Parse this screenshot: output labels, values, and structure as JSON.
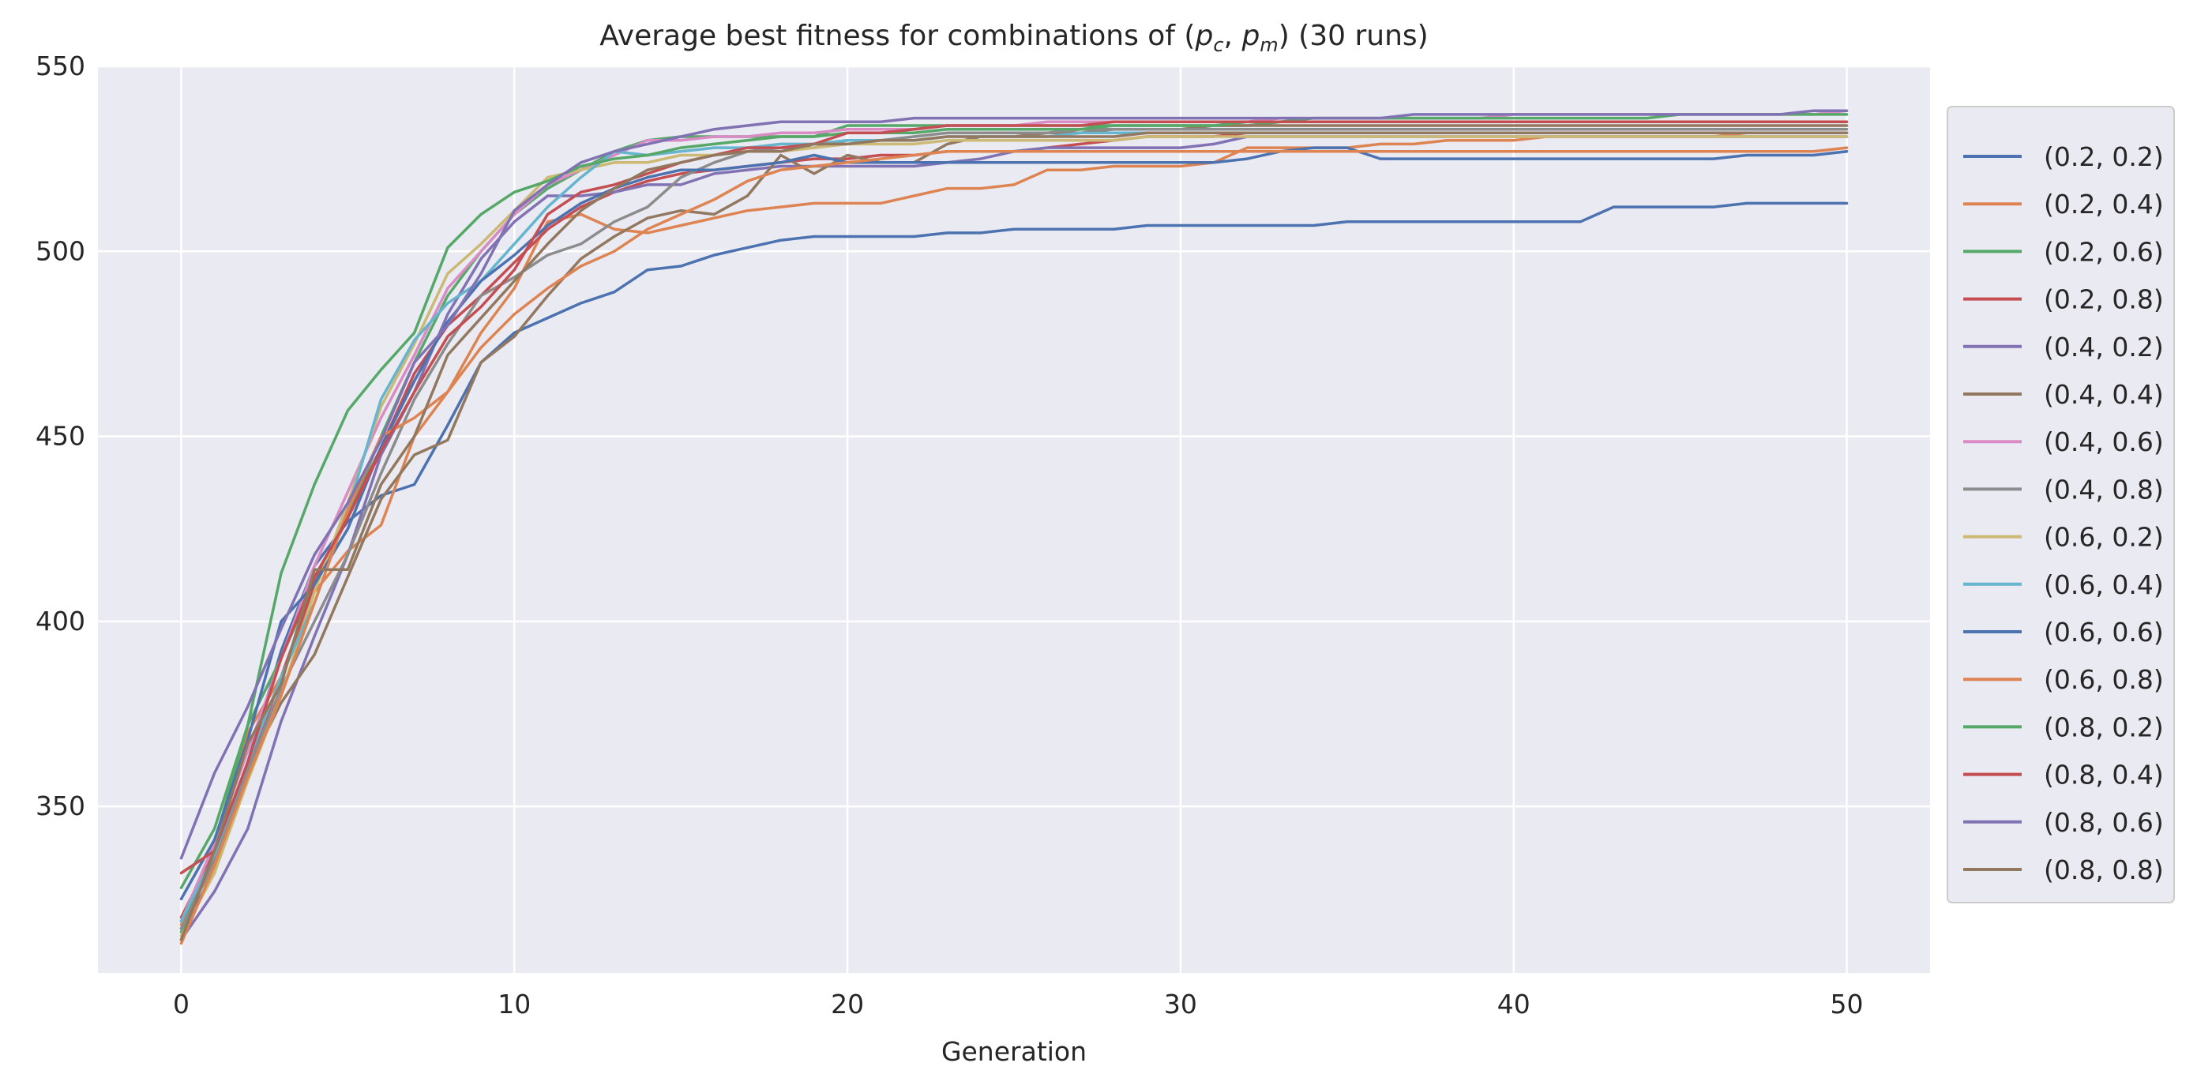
{
  "chart_data": {
    "type": "line",
    "title": "Average best fitness for combinations of (p_c, p_m) (30 runs)",
    "title_parts": {
      "pre": "Average best fitness for combinations of (",
      "pc_base": "p",
      "pc_sub": "c",
      "sep": ", ",
      "pm_base": "p",
      "pm_sub": "m",
      "post": ") (30 runs)"
    },
    "xlabel": "Generation",
    "ylabel": "",
    "xlim": [
      -2.5,
      52.5
    ],
    "ylim": [
      305,
      550
    ],
    "xticks": [
      0,
      10,
      20,
      30,
      40,
      50
    ],
    "yticks": [
      350,
      400,
      450,
      500,
      550
    ],
    "grid": true,
    "legend_position": "outside right",
    "x": [
      0,
      1,
      2,
      3,
      4,
      5,
      6,
      7,
      8,
      9,
      10,
      11,
      12,
      13,
      14,
      15,
      16,
      17,
      18,
      19,
      20,
      21,
      22,
      23,
      24,
      25,
      26,
      27,
      28,
      29,
      30,
      31,
      32,
      33,
      34,
      35,
      36,
      37,
      38,
      39,
      40,
      41,
      42,
      43,
      44,
      45,
      46,
      47,
      48,
      49,
      50
    ],
    "series": [
      {
        "name": "(0.2, 0.2)",
        "color": "#4c72b0",
        "values": [
          317,
          332,
          362,
          392,
          415,
          427,
          434,
          437,
          453,
          470,
          478,
          482,
          486,
          489,
          495,
          496,
          499,
          501,
          503,
          504,
          504,
          504,
          504,
          505,
          505,
          506,
          506,
          506,
          506,
          507,
          507,
          507,
          507,
          507,
          507,
          508,
          508,
          508,
          508,
          508,
          508,
          508,
          508,
          512,
          512,
          512,
          512,
          513,
          513,
          513,
          513
        ]
      },
      {
        "name": "(0.2, 0.4)",
        "color": "#dd8452",
        "values": [
          318,
          340,
          370,
          385,
          408,
          419,
          426,
          450,
          462,
          478,
          490,
          508,
          510,
          506,
          505,
          507,
          509,
          511,
          512,
          513,
          513,
          513,
          515,
          517,
          517,
          518,
          522,
          522,
          523,
          523,
          523,
          524,
          528,
          528,
          528,
          528,
          529,
          529,
          530,
          530,
          530,
          531,
          531,
          531,
          531,
          531,
          531,
          532,
          532,
          532,
          532
        ]
      },
      {
        "name": "(0.2, 0.6)",
        "color": "#55a868",
        "values": [
          316,
          340,
          372,
          390,
          411,
          428,
          450,
          470,
          488,
          500,
          510,
          517,
          522,
          527,
          530,
          531,
          531,
          531,
          531,
          531,
          534,
          534,
          534,
          534,
          534,
          534,
          534,
          534,
          534,
          534,
          534,
          534,
          534,
          535,
          535,
          535,
          535,
          535,
          535,
          535,
          535,
          535,
          535,
          535,
          535,
          535,
          535,
          535,
          535,
          535,
          535
        ]
      },
      {
        "name": "(0.2, 0.8)",
        "color": "#c44e52",
        "values": [
          320,
          338,
          360,
          385,
          410,
          428,
          447,
          467,
          480,
          488,
          497,
          506,
          512,
          516,
          519,
          521,
          522,
          523,
          524,
          525,
          525,
          526,
          526,
          527,
          527,
          527,
          528,
          529,
          530,
          531,
          531,
          531,
          532,
          532,
          532,
          532,
          532,
          532,
          532,
          532,
          532,
          532,
          532,
          532,
          532,
          532,
          532,
          532,
          532,
          532,
          532
        ]
      },
      {
        "name": "(0.4, 0.2)",
        "color": "#8172b3",
        "values": [
          314,
          327,
          344,
          373,
          396,
          418,
          445,
          462,
          483,
          498,
          508,
          515,
          515,
          516,
          518,
          518,
          521,
          522,
          523,
          523,
          523,
          523,
          523,
          524,
          525,
          527,
          528,
          528,
          528,
          528,
          528,
          529,
          531,
          531,
          531,
          531,
          531,
          531,
          531,
          531,
          531,
          531,
          531,
          531,
          531,
          531,
          531,
          531,
          531,
          531,
          531
        ]
      },
      {
        "name": "(0.4, 0.4)",
        "color": "#937860",
        "values": [
          319,
          336,
          360,
          378,
          391,
          412,
          433,
          445,
          449,
          470,
          477,
          488,
          498,
          504,
          509,
          511,
          510,
          515,
          526,
          521,
          526,
          524,
          524,
          529,
          531,
          531,
          532,
          532,
          533,
          533,
          533,
          534,
          534,
          534,
          534,
          534,
          534,
          534,
          534,
          534,
          534,
          534,
          534,
          534,
          534,
          534,
          534,
          534,
          534,
          534,
          534
        ]
      },
      {
        "name": "(0.4, 0.6)",
        "color": "#da8bc3",
        "values": [
          319,
          340,
          365,
          390,
          415,
          435,
          455,
          472,
          490,
          500,
          510,
          518,
          522,
          526,
          530,
          530,
          531,
          531,
          532,
          532,
          533,
          533,
          533,
          534,
          534,
          534,
          535,
          535,
          535,
          535,
          535,
          535,
          535,
          536,
          536,
          536,
          536,
          536,
          536,
          536,
          537,
          537,
          537,
          537,
          537,
          537,
          537,
          537,
          537,
          537,
          538
        ]
      },
      {
        "name": "(0.4, 0.8)",
        "color": "#8c8c8c",
        "values": [
          317,
          335,
          360,
          382,
          400,
          418,
          440,
          460,
          475,
          488,
          493,
          499,
          502,
          508,
          512,
          520,
          524,
          527,
          528,
          528,
          530,
          530,
          531,
          532,
          532,
          532,
          532,
          533,
          533,
          533,
          533,
          533,
          533,
          533,
          533,
          533,
          533,
          533,
          533,
          533,
          533,
          533,
          533,
          533,
          533,
          533,
          533,
          533,
          533,
          533,
          533
        ]
      },
      {
        "name": "(0.6, 0.2)",
        "color": "#ccb974",
        "values": [
          315,
          332,
          357,
          380,
          408,
          432,
          458,
          475,
          494,
          502,
          511,
          520,
          522,
          524,
          524,
          526,
          526,
          527,
          527,
          528,
          529,
          529,
          529,
          530,
          530,
          530,
          530,
          530,
          530,
          531,
          531,
          531,
          531,
          531,
          531,
          531,
          531,
          531,
          531,
          531,
          531,
          531,
          531,
          531,
          531,
          531,
          531,
          531,
          531,
          531,
          531
        ]
      },
      {
        "name": "(0.6, 0.4)",
        "color": "#64b5cd",
        "values": [
          319,
          337,
          362,
          385,
          405,
          430,
          460,
          476,
          486,
          492,
          502,
          512,
          520,
          527,
          526,
          527,
          528,
          528,
          529,
          529,
          530,
          530,
          530,
          531,
          531,
          531,
          531,
          532,
          532,
          532,
          532,
          532,
          532,
          532,
          532,
          532,
          532,
          532,
          532,
          532,
          532,
          532,
          532,
          532,
          532,
          532,
          532,
          532,
          532,
          532,
          532
        ]
      },
      {
        "name": "(0.6, 0.6)",
        "color": "#4c72b0",
        "values": [
          325,
          341,
          368,
          400,
          410,
          425,
          447,
          465,
          481,
          492,
          499,
          507,
          513,
          517,
          520,
          522,
          522,
          523,
          524,
          526,
          524,
          524,
          524,
          524,
          524,
          524,
          524,
          524,
          524,
          524,
          524,
          524,
          525,
          527,
          528,
          528,
          525,
          525,
          525,
          525,
          525,
          525,
          525,
          525,
          525,
          525,
          525,
          526,
          526,
          526,
          527
        ]
      },
      {
        "name": "(0.6, 0.8)",
        "color": "#dd8452",
        "values": [
          313,
          334,
          358,
          380,
          405,
          430,
          450,
          455,
          462,
          474,
          483,
          490,
          496,
          500,
          506,
          510,
          514,
          519,
          522,
          523,
          524,
          525,
          526,
          527,
          527,
          527,
          527,
          527,
          527,
          527,
          527,
          527,
          527,
          527,
          527,
          527,
          527,
          527,
          527,
          527,
          527,
          527,
          527,
          527,
          527,
          527,
          527,
          527,
          527,
          527,
          528
        ]
      },
      {
        "name": "(0.8, 0.2)",
        "color": "#55a868",
        "values": [
          328,
          344,
          372,
          413,
          437,
          457,
          468,
          478,
          501,
          510,
          516,
          519,
          523,
          525,
          526,
          528,
          529,
          530,
          531,
          531,
          532,
          532,
          532,
          533,
          533,
          533,
          533,
          533,
          534,
          534,
          534,
          534,
          535,
          535,
          536,
          536,
          536,
          536,
          536,
          536,
          536,
          536,
          536,
          536,
          536,
          537,
          537,
          537,
          537,
          537,
          537
        ]
      },
      {
        "name": "(0.8, 0.4)",
        "color": "#c44e52",
        "values": [
          332,
          338,
          362,
          390,
          412,
          428,
          446,
          462,
          477,
          485,
          495,
          510,
          516,
          518,
          521,
          524,
          526,
          528,
          528,
          529,
          532,
          532,
          533,
          534,
          534,
          534,
          534,
          534,
          535,
          535,
          535,
          535,
          535,
          535,
          535,
          535,
          535,
          535,
          535,
          535,
          535,
          535,
          535,
          535,
          535,
          535,
          535,
          535,
          535,
          535,
          535
        ]
      },
      {
        "name": "(0.8, 0.6)",
        "color": "#8172b3",
        "values": [
          336,
          359,
          377,
          398,
          418,
          432,
          449,
          470,
          480,
          494,
          511,
          518,
          524,
          527,
          529,
          531,
          533,
          534,
          535,
          535,
          535,
          535,
          536,
          536,
          536,
          536,
          536,
          536,
          536,
          536,
          536,
          536,
          536,
          536,
          536,
          536,
          536,
          537,
          537,
          537,
          537,
          537,
          537,
          537,
          537,
          537,
          537,
          537,
          537,
          538,
          538
        ]
      },
      {
        "name": "(0.8, 0.8)",
        "color": "#937860",
        "values": [
          314,
          338,
          367,
          383,
          414,
          414,
          437,
          450,
          472,
          482,
          492,
          502,
          511,
          517,
          522,
          524,
          526,
          527,
          527,
          529,
          529,
          530,
          530,
          531,
          531,
          531,
          531,
          531,
          531,
          532,
          532,
          532,
          532,
          532,
          532,
          532,
          532,
          532,
          532,
          532,
          532,
          532,
          532,
          532,
          532,
          532,
          532,
          532,
          532,
          532,
          532
        ]
      }
    ]
  }
}
